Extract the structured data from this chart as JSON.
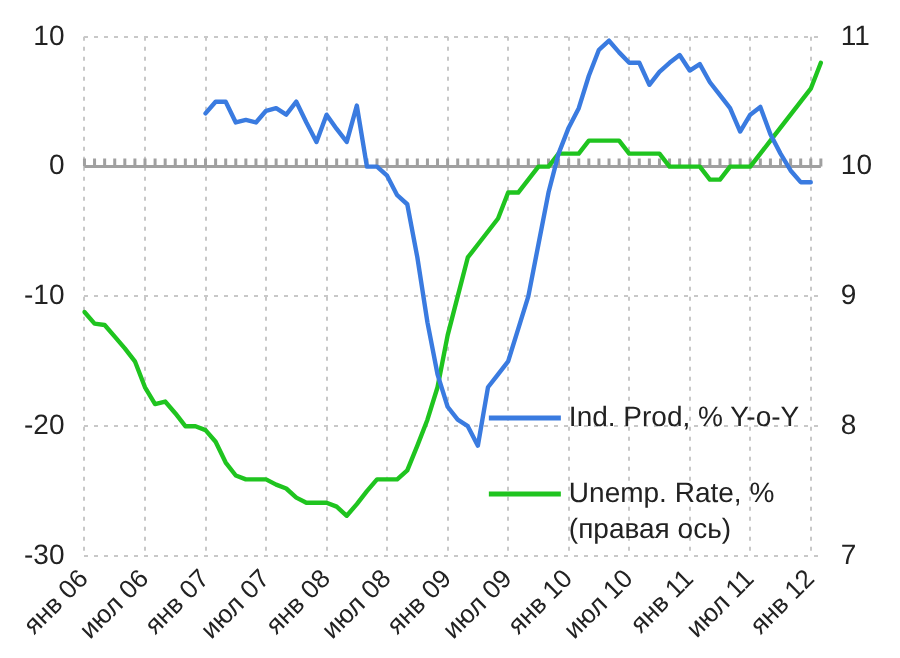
{
  "chart_data": {
    "type": "line",
    "categories": [
      "янв 06",
      null,
      null,
      null,
      null,
      null,
      "июл 06",
      null,
      null,
      null,
      null,
      null,
      "янв 07",
      null,
      null,
      null,
      null,
      null,
      "июл 07",
      null,
      null,
      null,
      null,
      null,
      "янв 08",
      null,
      null,
      null,
      null,
      null,
      "июл 08",
      null,
      null,
      null,
      null,
      null,
      "янв 09",
      null,
      null,
      null,
      null,
      null,
      "июл 09",
      null,
      null,
      null,
      null,
      null,
      "янв 10",
      null,
      null,
      null,
      null,
      null,
      "июл 10",
      null,
      null,
      null,
      null,
      null,
      "янв 11",
      null,
      null,
      null,
      null,
      null,
      "июл 11",
      null,
      null,
      null,
      null,
      null,
      "янв 12",
      null
    ],
    "series": [
      {
        "name": "Ind. Prod, % Y-o-Y",
        "color": "#3a7be0",
        "values": [
          null,
          null,
          null,
          null,
          null,
          null,
          null,
          null,
          null,
          null,
          null,
          null,
          4.1,
          5,
          5,
          3.4,
          3.6,
          3.4,
          4.3,
          4.5,
          4,
          5,
          3.4,
          1.9,
          4,
          2.9,
          1.9,
          4.7,
          0,
          0,
          -0.7,
          -2.2,
          -2.9,
          -7,
          -12,
          -16,
          -18.5,
          -19.5,
          -20,
          -21.5,
          -17,
          -16,
          -15,
          -12.5,
          -10,
          -6,
          -2,
          1,
          3,
          4.5,
          7,
          9,
          9.7,
          8.8,
          8,
          8,
          6.3,
          7.3,
          8,
          8.6,
          7.4,
          7.9,
          6.5,
          5.5,
          4.5,
          2.7,
          4,
          4.6,
          2.5,
          1,
          -0.3,
          -1.2,
          -1.2,
          null
        ]
      },
      {
        "name": "Unemp. Rate, % (правая ось)",
        "color": "#1fc41f",
        "axis": "y2",
        "values": [
          8.88,
          8.79,
          8.78,
          8.69,
          8.6,
          8.5,
          8.3,
          8.17,
          8.19,
          8.1,
          8,
          8,
          7.97,
          7.88,
          7.72,
          7.62,
          7.59,
          7.59,
          7.59,
          7.55,
          7.52,
          7.45,
          7.41,
          7.41,
          7.41,
          7.38,
          7.31,
          7.4,
          7.5,
          7.59,
          7.59,
          7.59,
          7.66,
          7.85,
          8.05,
          8.3,
          8.7,
          9,
          9.3,
          9.4,
          9.5,
          9.6,
          9.8,
          9.8,
          9.9,
          10,
          10,
          10.1,
          10.1,
          10.1,
          10.2,
          10.2,
          10.2,
          10.2,
          10.1,
          10.1,
          10.1,
          10.1,
          10,
          10,
          10,
          10,
          9.9,
          9.9,
          10,
          10,
          10,
          10.1,
          10.2,
          10.3,
          10.4,
          10.5,
          10.6,
          10.8
        ]
      }
    ],
    "ylim": [
      -30,
      10
    ],
    "yticks": [
      -30,
      -20,
      -10,
      0,
      10
    ],
    "y2lim": [
      7,
      11
    ],
    "y2ticks": [
      7,
      8,
      9,
      10,
      11
    ],
    "ref_lines": [
      {
        "axis": "y",
        "value": 0,
        "color": "#a0a0a0"
      }
    ],
    "grid": true,
    "legend": "bottom right",
    "marker": "none",
    "line_style": "solid"
  }
}
